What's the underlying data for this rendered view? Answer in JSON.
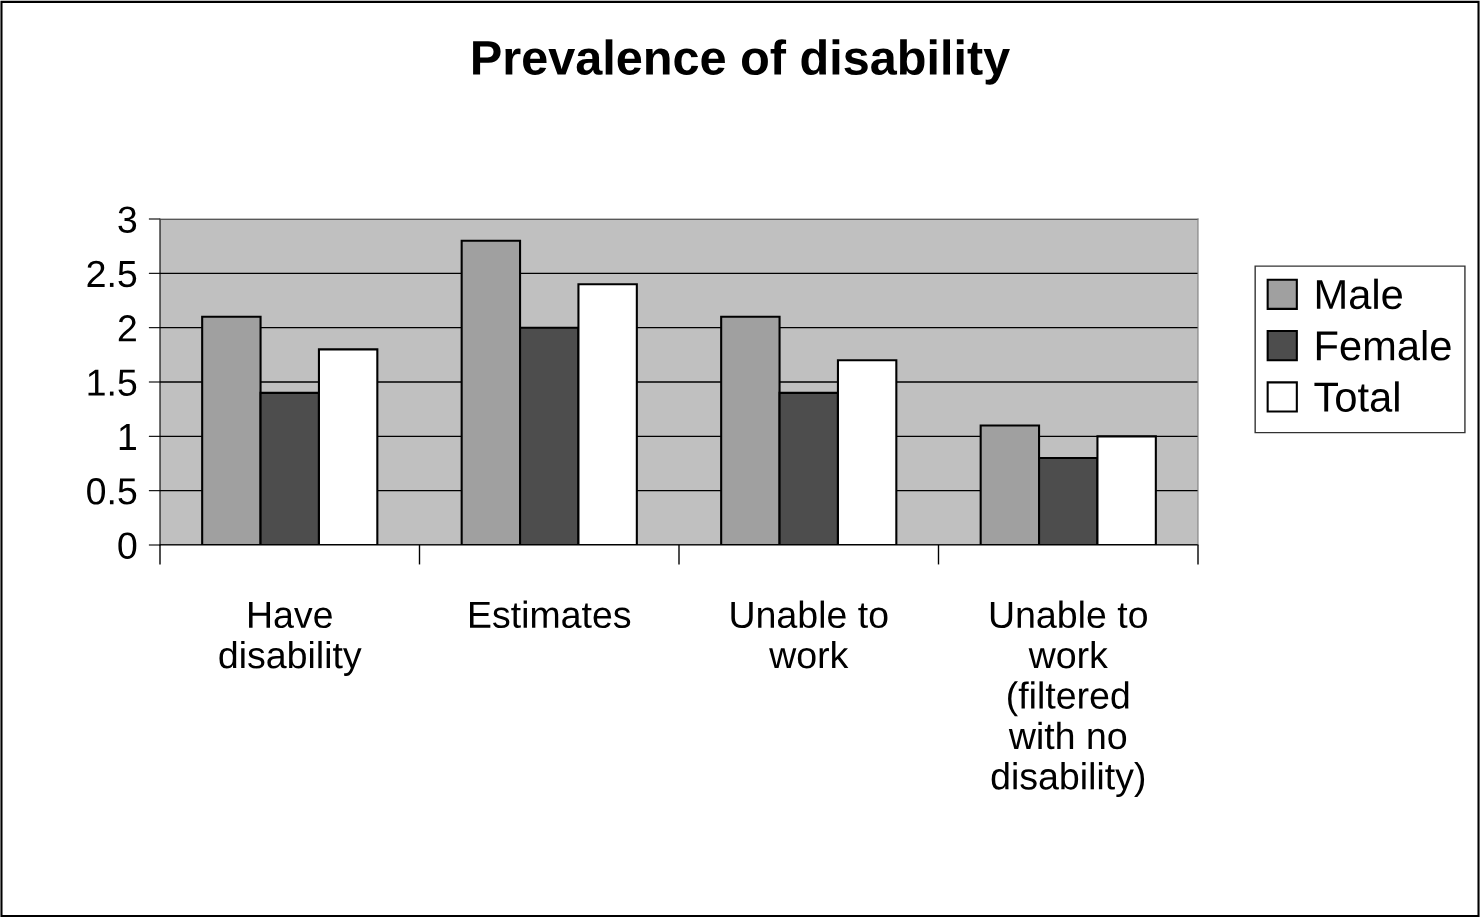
{
  "chart_data": {
    "type": "bar",
    "title": "Prevalence of disability",
    "categories": [
      "Have\ndisability",
      "Estimates",
      "Unable to\nwork",
      "Unable to\nwork\n(filtered\nwith no\ndisability)"
    ],
    "series": [
      {
        "name": "Male",
        "color": "#a0a0a0",
        "values": [
          2.1,
          2.8,
          2.1,
          1.1
        ]
      },
      {
        "name": "Female",
        "color": "#4d4d4d",
        "values": [
          1.4,
          2.0,
          1.4,
          0.8
        ]
      },
      {
        "name": "Total",
        "color": "#ffffff",
        "values": [
          1.8,
          2.4,
          1.7,
          1.0
        ]
      }
    ],
    "ylim": [
      0,
      3
    ],
    "yticks": [
      0,
      {
        "value": 0.5,
        "label": "0.5"
      },
      1,
      {
        "value": 1.5,
        "label": "1.5"
      },
      2,
      {
        "value": 2.5,
        "label": "2.5"
      },
      3
    ],
    "grid": "y",
    "legend": "right"
  }
}
